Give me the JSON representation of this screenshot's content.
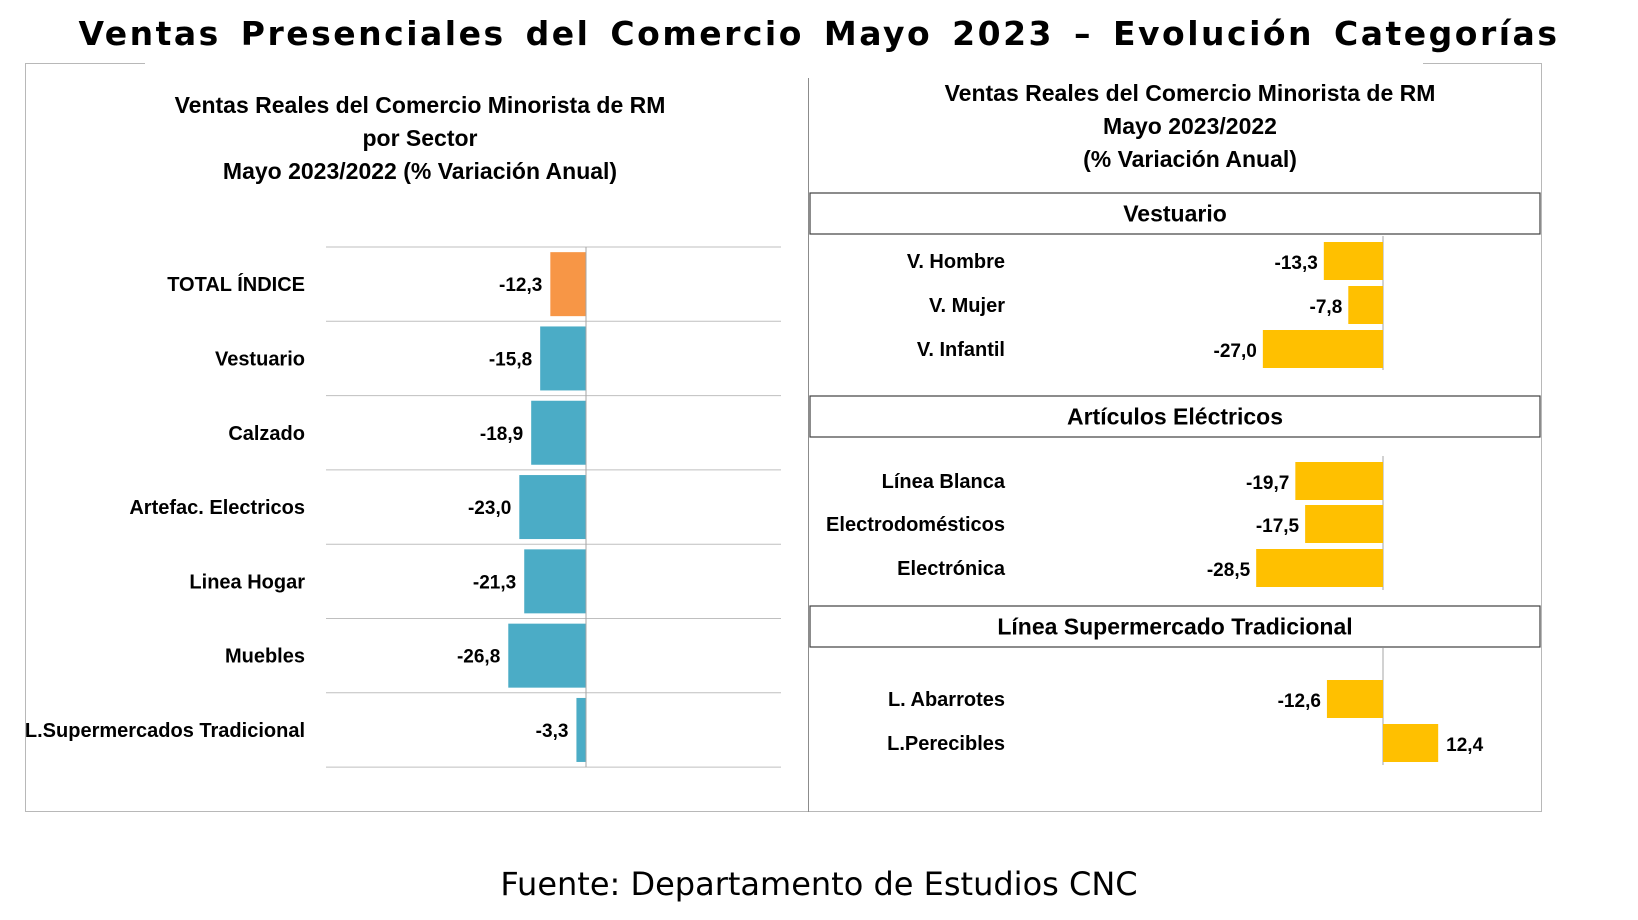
{
  "title": "Ventas Presenciales  del Comercio  Mayo 2023  –  Evolución  Categorías",
  "source": "Fuente:  Departamento  de Estudios  CNC",
  "colors": {
    "total": "#F79646",
    "sector": "#4BACC6",
    "category": "#FFC000"
  },
  "chart_data": [
    {
      "type": "bar",
      "orientation": "horizontal",
      "title_lines": [
        "Ventas Reales del Comercio Minorista de RM",
        "por Sector",
        "Mayo 2023/2022 (% Variación Anual)"
      ],
      "categories": [
        "TOTAL ÍNDICE",
        "Vestuario",
        "Calzado",
        "Artefac. Electricos",
        "Linea Hogar",
        "Muebles",
        "L.Supermercados Tradicional"
      ],
      "values": [
        -12.3,
        -15.8,
        -18.9,
        -23.0,
        -21.3,
        -26.8,
        -3.3
      ],
      "value_labels": [
        "-12,3",
        "-15,8",
        "-18,9",
        "-23,0",
        "-21,3",
        "-26,8",
        "-3,3"
      ],
      "highlight": "TOTAL ÍNDICE",
      "xlim": [
        -30,
        30
      ]
    },
    {
      "type": "bar",
      "orientation": "horizontal",
      "title_lines": [
        "Ventas Reales del Comercio Minorista de RM",
        "Mayo 2023/2022",
        "(% Variación Anual)"
      ],
      "groups": [
        {
          "name": "Vestuario",
          "categories": [
            "V. Hombre",
            "V. Mujer",
            "V. Infantil"
          ],
          "values": [
            -13.3,
            -7.8,
            -27.0
          ],
          "value_labels": [
            "-13,3",
            "-7,8",
            "-27,0"
          ]
        },
        {
          "name": "Artículos Eléctricos",
          "categories": [
            "Línea Blanca",
            "Electrodomésticos",
            "Electrónica"
          ],
          "values": [
            -19.7,
            -17.5,
            -28.5
          ],
          "value_labels": [
            "-19,7",
            "-17,5",
            "-28,5"
          ]
        },
        {
          "name": "Línea Supermercado Tradicional",
          "categories": [
            "L. Abarrotes",
            "L.Perecibles"
          ],
          "values": [
            -12.6,
            12.4
          ],
          "value_labels": [
            "-12,6",
            "12,4"
          ]
        }
      ],
      "xlim": [
        -30,
        30
      ]
    }
  ]
}
